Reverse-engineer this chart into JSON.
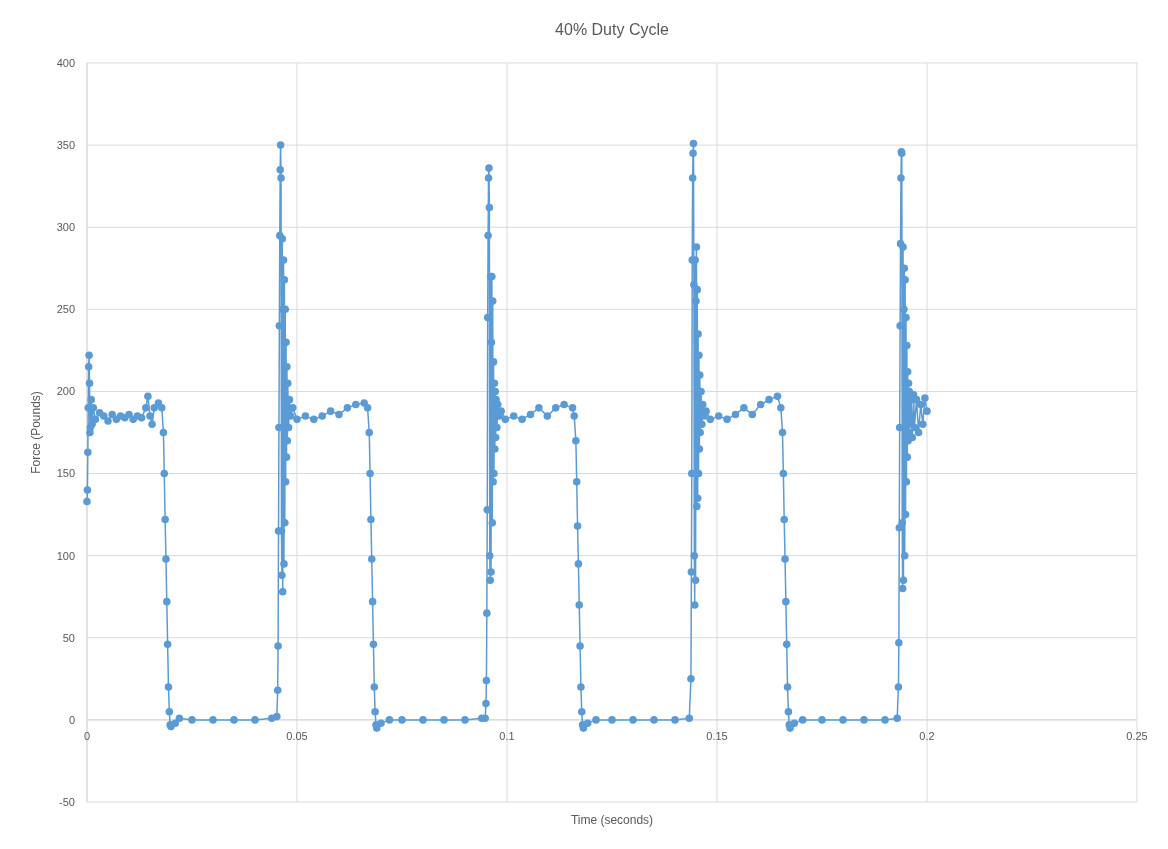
{
  "chart_data": {
    "type": "line",
    "title": "40% Duty Cycle",
    "xlabel": "Time (seconds)",
    "ylabel": "Force (Pounds)",
    "xlim": [
      0,
      0.25
    ],
    "xticks": [
      0,
      0.05,
      0.1,
      0.15,
      0.2,
      0.25
    ],
    "ylim": [
      -50,
      400
    ],
    "yticks": [
      -50,
      0,
      50,
      100,
      150,
      200,
      250,
      300,
      350,
      400
    ],
    "grid": true,
    "marker": "circle",
    "line_style": "solid",
    "series": [
      {
        "color": "#5b9bd5",
        "x": [
          0,
          0.0001,
          0.0002,
          0.0003,
          0.0004,
          0.0005,
          0.0006,
          0.0007,
          0.0008,
          0.001,
          0.0012,
          0.0015,
          0.002,
          0.003,
          0.004,
          0.005,
          0.006,
          0.007,
          0.008,
          0.009,
          0.01,
          0.011,
          0.012,
          0.013,
          0.014,
          0.0145,
          0.015,
          0.0155,
          0.016,
          0.017,
          0.0178,
          0.0182,
          0.0184,
          0.0186,
          0.0188,
          0.019,
          0.0192,
          0.0194,
          0.0196,
          0.0198,
          0.02,
          0.021,
          0.022,
          0.025,
          0.03,
          0.035,
          0.04,
          0.044,
          0.0452,
          0.0454,
          0.0455,
          0.0456,
          0.0457,
          0.0458,
          0.0459,
          0.046,
          0.0461,
          0.0462,
          0.0463,
          0.0464,
          0.0465,
          0.0466,
          0.0467,
          0.0468,
          0.0469,
          0.047,
          0.0471,
          0.0472,
          0.0473,
          0.0474,
          0.0475,
          0.0476,
          0.0477,
          0.0478,
          0.048,
          0.0482,
          0.0485,
          0.049,
          0.05,
          0.052,
          0.054,
          0.056,
          0.058,
          0.06,
          0.062,
          0.064,
          0.066,
          0.0668,
          0.0672,
          0.0674,
          0.0676,
          0.0678,
          0.068,
          0.0682,
          0.0684,
          0.0686,
          0.0688,
          0.069,
          0.07,
          0.072,
          0.075,
          0.08,
          0.085,
          0.09,
          0.094,
          0.0948,
          0.095,
          0.0951,
          0.0952,
          0.0953,
          0.0954,
          0.0955,
          0.0956,
          0.0957,
          0.0958,
          0.0959,
          0.096,
          0.0961,
          0.0962,
          0.0963,
          0.0964,
          0.0965,
          0.0966,
          0.0967,
          0.0968,
          0.0969,
          0.097,
          0.0971,
          0.0972,
          0.0973,
          0.0974,
          0.0976,
          0.0978,
          0.0981,
          0.0986,
          0.0996,
          0.1016,
          0.1036,
          0.1056,
          0.1076,
          0.1096,
          0.1116,
          0.1136,
          0.1156,
          0.116,
          0.1164,
          0.1166,
          0.1168,
          0.117,
          0.1172,
          0.1174,
          0.1176,
          0.1178,
          0.118,
          0.1182,
          0.1192,
          0.1212,
          0.125,
          0.13,
          0.135,
          0.14,
          0.1434,
          0.1438,
          0.1439,
          0.144,
          0.1441,
          0.1442,
          0.1443,
          0.1444,
          0.1445,
          0.1446,
          0.1447,
          0.1448,
          0.1449,
          0.145,
          0.1451,
          0.1452,
          0.1453,
          0.1454,
          0.1455,
          0.1456,
          0.1457,
          0.1458,
          0.1459,
          0.146,
          0.1462,
          0.1464,
          0.1466,
          0.1469,
          0.1474,
          0.1484,
          0.1504,
          0.1524,
          0.1544,
          0.1564,
          0.1584,
          0.1604,
          0.1624,
          0.1644,
          0.1652,
          0.1656,
          0.1658,
          0.166,
          0.1662,
          0.1664,
          0.1666,
          0.1668,
          0.167,
          0.1672,
          0.1674,
          0.1684,
          0.1704,
          0.175,
          0.18,
          0.185,
          0.19,
          0.1929,
          0.1932,
          0.1933,
          0.1934,
          0.1935,
          0.1936,
          0.1937,
          0.1938,
          0.1939,
          0.194,
          0.1941,
          0.1942,
          0.1943,
          0.1944,
          0.1945,
          0.1946,
          0.1947,
          0.1948,
          0.1949,
          0.195,
          0.1951,
          0.1952,
          0.1953,
          0.1954,
          0.1955,
          0.1956,
          0.1957,
          0.1958,
          0.196,
          0.1962,
          0.1965,
          0.1968,
          0.197,
          0.1975,
          0.198,
          0.1985,
          0.199,
          0.1995,
          0.2
        ],
        "values": [
          133,
          140,
          163,
          190,
          215,
          222,
          205,
          175,
          178,
          195,
          180,
          190,
          183,
          187,
          185,
          182,
          186,
          183,
          185,
          184,
          186,
          183,
          185,
          184,
          190,
          197,
          185,
          180,
          190,
          193,
          190,
          175,
          150,
          122,
          98,
          72,
          46,
          20,
          5,
          -3,
          -4,
          -2,
          1,
          0,
          0,
          0,
          0,
          1,
          2,
          18,
          45,
          115,
          178,
          240,
          295,
          335,
          350,
          330,
          115,
          88,
          293,
          78,
          250,
          280,
          95,
          268,
          120,
          250,
          145,
          230,
          160,
          215,
          170,
          205,
          178,
          195,
          185,
          190,
          183,
          185,
          183,
          185,
          188,
          186,
          190,
          192,
          193,
          190,
          175,
          150,
          122,
          98,
          72,
          46,
          20,
          5,
          -3,
          -5,
          -2,
          0,
          0,
          0,
          0,
          0,
          1,
          1,
          10,
          24,
          65,
          128,
          245,
          295,
          330,
          336,
          312,
          100,
          85,
          270,
          90,
          230,
          270,
          120,
          255,
          145,
          218,
          150,
          205,
          165,
          200,
          172,
          195,
          178,
          192,
          185,
          188,
          183,
          185,
          183,
          186,
          190,
          185,
          190,
          192,
          190,
          185,
          170,
          145,
          118,
          95,
          70,
          45,
          20,
          5,
          -3,
          -5,
          -2,
          0,
          0,
          0,
          0,
          0,
          1,
          25,
          90,
          150,
          280,
          330,
          345,
          351,
          265,
          100,
          70,
          280,
          85,
          255,
          288,
          130,
          262,
          135,
          235,
          150,
          222,
          165,
          210,
          175,
          200,
          180,
          192,
          185,
          188,
          183,
          185,
          183,
          186,
          190,
          186,
          192,
          195,
          197,
          190,
          175,
          150,
          122,
          98,
          72,
          46,
          20,
          5,
          -3,
          -5,
          -2,
          0,
          0,
          0,
          0,
          0,
          1,
          20,
          47,
          117,
          178,
          240,
          290,
          330,
          346,
          345,
          120,
          80,
          288,
          85,
          250,
          275,
          100,
          268,
          125,
          245,
          145,
          228,
          160,
          212,
          170,
          205,
          175,
          200,
          180,
          195,
          172,
          198,
          178,
          195,
          175,
          192,
          180,
          196,
          188
        ]
      }
    ]
  }
}
